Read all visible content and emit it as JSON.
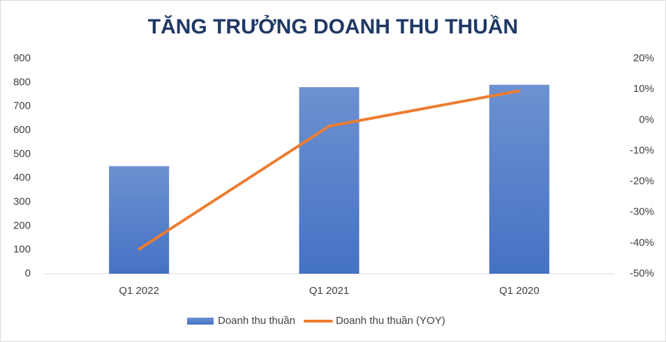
{
  "chart_data": {
    "type": "combo",
    "title": "TĂNG TRƯỞNG DOANH THU THUẦN",
    "categories": [
      "Q1 2022",
      "Q1 2021",
      "Q1 2020"
    ],
    "series": [
      {
        "name": "Doanh thu thuần",
        "type": "bar",
        "color": "#4472c4",
        "values": [
          450,
          780,
          790
        ]
      },
      {
        "name": "Doanh thu thuần (YOY)",
        "type": "line",
        "color": "#ed7d31",
        "axis": "y2",
        "values": [
          -42,
          -2,
          9.5
        ]
      }
    ],
    "ylim": [
      0,
      900
    ],
    "yticks": [
      0,
      100,
      200,
      300,
      400,
      500,
      600,
      700,
      800,
      900
    ],
    "y2lim": [
      -50,
      20
    ],
    "y2ticks": [
      {
        "value": -50,
        "label": "-50%"
      },
      {
        "value": -40,
        "label": "-40%"
      },
      {
        "value": -30,
        "label": "-30%"
      },
      {
        "value": -20,
        "label": "-20%"
      },
      {
        "value": -10,
        "label": "-10%"
      },
      {
        "value": 0,
        "label": "0%"
      },
      {
        "value": 10,
        "label": "10%"
      },
      {
        "value": 20,
        "label": "20%"
      }
    ],
    "legend": "bottom"
  }
}
